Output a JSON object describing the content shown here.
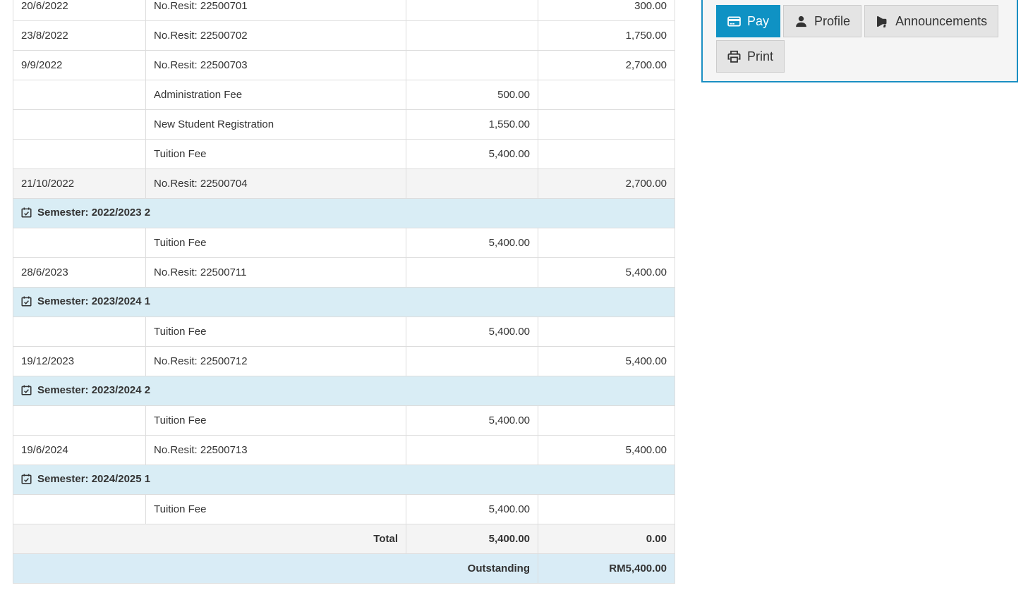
{
  "fee_statement": {
    "rows": [
      {
        "type": "data",
        "date": "20/6/2022",
        "description": "No.Resit: 22500701",
        "amount": "",
        "payment": "300.00"
      },
      {
        "type": "data",
        "date": "23/8/2022",
        "description": "No.Resit: 22500702",
        "amount": "",
        "payment": "1,750.00"
      },
      {
        "type": "data",
        "date": "9/9/2022",
        "description": "No.Resit: 22500703",
        "amount": "",
        "payment": "2,700.00"
      },
      {
        "type": "data",
        "date": "",
        "description": "Administration Fee",
        "amount": "500.00",
        "payment": ""
      },
      {
        "type": "data",
        "date": "",
        "description": "New Student Registration",
        "amount": "1,550.00",
        "payment": ""
      },
      {
        "type": "data",
        "date": "",
        "description": "Tuition Fee",
        "amount": "5,400.00",
        "payment": ""
      },
      {
        "type": "data",
        "date": "21/10/2022",
        "description": "No.Resit: 22500704",
        "amount": "",
        "payment": "2,700.00",
        "muted": true
      },
      {
        "type": "semester",
        "label": "Semester: 2022/2023 2"
      },
      {
        "type": "data",
        "date": "",
        "description": "Tuition Fee",
        "amount": "5,400.00",
        "payment": ""
      },
      {
        "type": "data",
        "date": "28/6/2023",
        "description": "No.Resit: 22500711",
        "amount": "",
        "payment": "5,400.00"
      },
      {
        "type": "semester",
        "label": "Semester: 2023/2024 1"
      },
      {
        "type": "data",
        "date": "",
        "description": "Tuition Fee",
        "amount": "5,400.00",
        "payment": ""
      },
      {
        "type": "data",
        "date": "19/12/2023",
        "description": "No.Resit: 22500712",
        "amount": "",
        "payment": "5,400.00"
      },
      {
        "type": "semester",
        "label": "Semester: 2023/2024 2"
      },
      {
        "type": "data",
        "date": "",
        "description": "Tuition Fee",
        "amount": "5,400.00",
        "payment": ""
      },
      {
        "type": "data",
        "date": "19/6/2024",
        "description": "No.Resit: 22500713",
        "amount": "",
        "payment": "5,400.00"
      },
      {
        "type": "semester",
        "label": "Semester: 2024/2025 1"
      },
      {
        "type": "data",
        "date": "",
        "description": "Tuition Fee",
        "amount": "5,400.00",
        "payment": ""
      },
      {
        "type": "total",
        "label": "Total",
        "amount": "5,400.00",
        "payment": "0.00"
      },
      {
        "type": "outstanding",
        "label": "Outstanding",
        "payment": "RM5,400.00"
      }
    ]
  },
  "actions": {
    "buttons": [
      {
        "id": "pay",
        "label": "Pay",
        "icon": "credit-card-icon",
        "active": true
      },
      {
        "id": "profile",
        "label": "Profile",
        "icon": "user-icon",
        "active": false
      },
      {
        "id": "announcements",
        "label": "Announcements",
        "icon": "bullhorn-icon",
        "active": false
      },
      {
        "id": "print",
        "label": "Print",
        "icon": "print-icon",
        "active": false
      }
    ]
  },
  "colors": {
    "accent_blue": "#0f92c4",
    "panel_border": "#1b8fc3",
    "semester_row_bg": "#d9edf5",
    "outstanding_row_bg": "#d9ecf6",
    "muted_row_bg": "#f4f4f4",
    "table_border": "#dddddd",
    "text": "#333333"
  }
}
